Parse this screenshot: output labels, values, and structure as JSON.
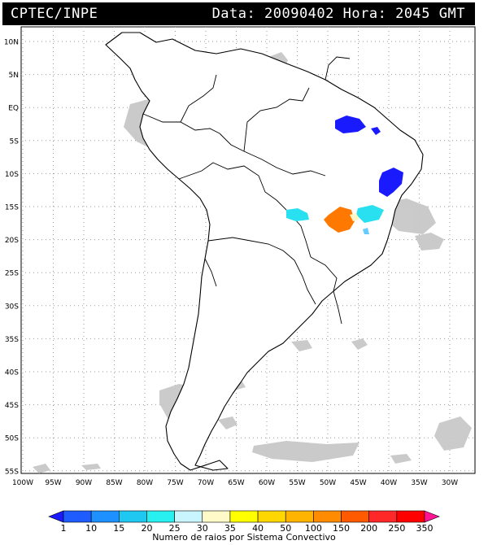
{
  "header": {
    "agency": "CPTEC/INPE",
    "date_label": "Data:",
    "date_value": "20090402",
    "hour_label": "Hora:",
    "hour_value": "2045",
    "timezone": "GMT"
  },
  "map": {
    "lat_labels": [
      "10N",
      "5N",
      "EQ",
      "5S",
      "10S",
      "15S",
      "20S",
      "25S",
      "30S",
      "35S",
      "40S",
      "45S",
      "50S",
      "55S"
    ],
    "lon_labels": [
      "100W",
      "95W",
      "90W",
      "85W",
      "80W",
      "75W",
      "70W",
      "65W",
      "60W",
      "55W",
      "50W",
      "45W",
      "40W",
      "35W",
      "30W"
    ],
    "land_fill": "#ffffff",
    "cloud_color": "#c8c8c8",
    "border_color": "#000000"
  },
  "legend": {
    "caption": "Numero de raios por Sistema Convectivo",
    "ticks": [
      "1",
      "10",
      "15",
      "20",
      "25",
      "30",
      "35",
      "40",
      "50",
      "100",
      "150",
      "200",
      "250",
      "350"
    ],
    "colors": [
      "#1a1aff",
      "#1e5cff",
      "#1e90ff",
      "#1ec8f0",
      "#28f0f0",
      "#c8f5ff",
      "#fffac8",
      "#ffff00",
      "#ffd700",
      "#ffb400",
      "#ff8c00",
      "#ff5a00",
      "#ff2828",
      "#ff0000",
      "#ff1493"
    ]
  },
  "storms": {
    "colors": {
      "deep_blue": "#1a1aff",
      "cyan": "#28e0f0",
      "orange": "#ff7800",
      "pale_yellow": "#fff5c8",
      "light_blue": "#66ccff"
    }
  }
}
